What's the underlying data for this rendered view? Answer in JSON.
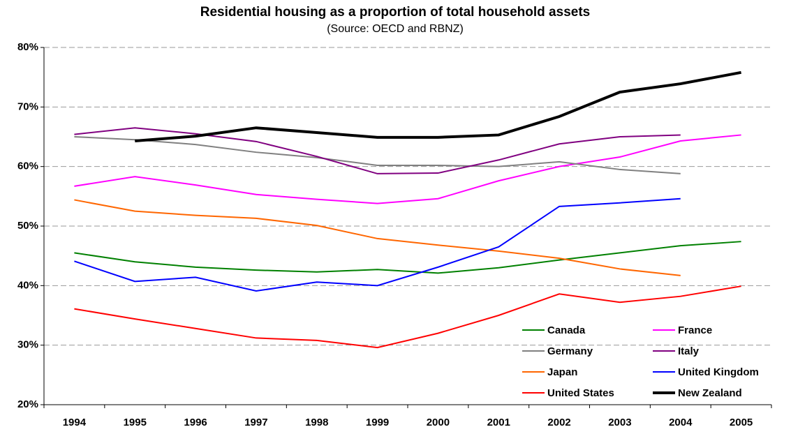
{
  "chart_data": {
    "type": "line",
    "title": "Residential housing as  a proportion of total household assets",
    "subtitle": "(Source: OECD and RBNZ)",
    "categories": [
      "1994",
      "1995",
      "1996",
      "1997",
      "1998",
      "1999",
      "2000",
      "2001",
      "2002",
      "2003",
      "2004",
      "2005"
    ],
    "ylim": [
      20,
      80
    ],
    "yticks": [
      {
        "value": 20,
        "label": "20%"
      },
      {
        "value": 30,
        "label": "30%"
      },
      {
        "value": 40,
        "label": "40%"
      },
      {
        "value": 50,
        "label": "50%"
      },
      {
        "value": 60,
        "label": "60%"
      },
      {
        "value": 70,
        "label": "70%"
      },
      {
        "value": 80,
        "label": "80%"
      }
    ],
    "grid": true,
    "legend": "lower right",
    "series": [
      {
        "name": "Canada",
        "color": "#008000",
        "values": [
          45.5,
          44.0,
          43.1,
          42.6,
          42.3,
          42.7,
          42.1,
          43.0,
          44.3,
          45.5,
          46.7,
          47.4
        ]
      },
      {
        "name": "France",
        "color": "#ff00ff",
        "values": [
          56.7,
          58.3,
          56.9,
          55.3,
          54.5,
          53.8,
          54.6,
          57.6,
          60.0,
          61.6,
          64.3,
          65.3
        ]
      },
      {
        "name": "Germany",
        "color": "#808080",
        "values": [
          65.0,
          64.5,
          63.7,
          62.4,
          61.5,
          60.2,
          60.2,
          60.0,
          60.8,
          59.5,
          58.8,
          null
        ]
      },
      {
        "name": "Italy",
        "color": "#800080",
        "values": [
          65.4,
          66.5,
          65.5,
          64.2,
          61.7,
          58.8,
          58.9,
          61.1,
          63.8,
          65.0,
          65.3,
          null
        ]
      },
      {
        "name": "Japan",
        "color": "#ff6600",
        "values": [
          54.4,
          52.5,
          51.8,
          51.3,
          50.1,
          47.9,
          46.8,
          45.8,
          44.6,
          42.8,
          41.7,
          null
        ]
      },
      {
        "name": "United Kingdom",
        "color": "#0000ff",
        "values": [
          44.1,
          40.7,
          41.4,
          39.1,
          40.6,
          40.0,
          43.1,
          46.5,
          53.3,
          53.9,
          54.6,
          null
        ]
      },
      {
        "name": "United States",
        "color": "#ff0000",
        "values": [
          36.1,
          34.4,
          32.8,
          31.2,
          30.8,
          29.6,
          32.0,
          35.0,
          38.6,
          37.2,
          38.2,
          39.9
        ]
      },
      {
        "name": "New Zealand",
        "color": "#000000",
        "width": 4,
        "values": [
          null,
          64.3,
          65.1,
          66.5,
          65.7,
          64.9,
          64.9,
          65.3,
          68.4,
          72.5,
          73.9,
          75.8
        ]
      }
    ]
  }
}
